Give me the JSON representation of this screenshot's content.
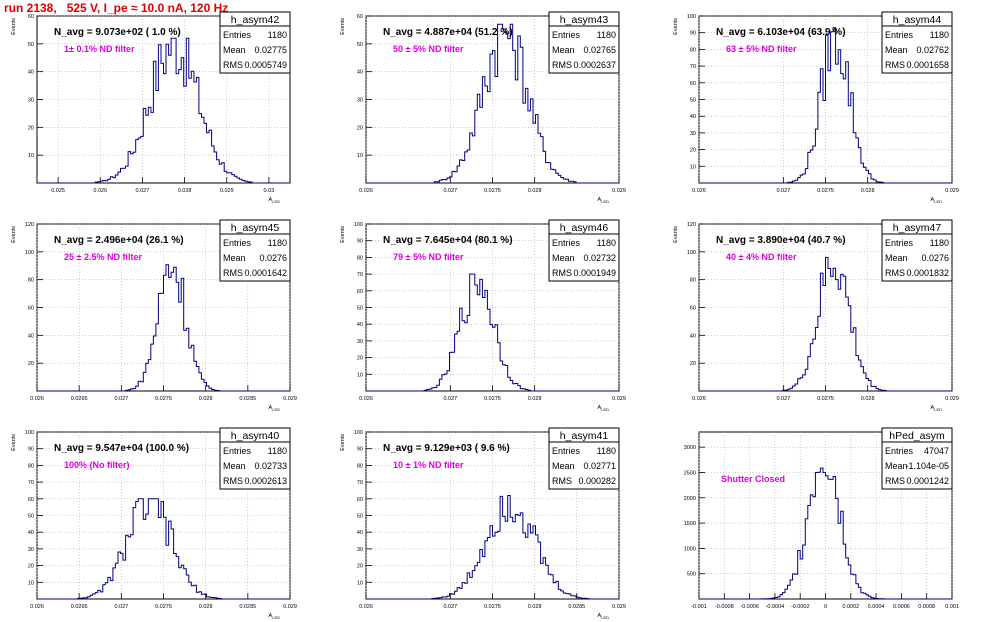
{
  "header": {
    "title": "run 2138,   525 V, I_pe ≈ 10.0 nA, 120 Hz"
  },
  "colors": {
    "histogram": "#000080",
    "title": "#e00000",
    "annotation": "#dd00dd",
    "grid": "#aaaaaa"
  },
  "chart_data": [
    {
      "type": "histogram",
      "name": "h_asym42",
      "nlabel": "N_avg = 9.073e+02 ( 1.0 %)",
      "annotation": "1± 0.1% ND filter",
      "stats": {
        "Entries": "1180",
        "Mean": "0.02775",
        "RMS": "0.0005749"
      },
      "ylabel": "Events",
      "xlabel": "A_LED",
      "xlim": [
        0.0245,
        0.0305
      ],
      "ylim": [
        0,
        60
      ],
      "xticks": [
        "0.025",
        "0.026",
        "0.027",
        "0.028",
        "0.029",
        "0.03"
      ],
      "yticks": [
        "10",
        "20",
        "30",
        "40",
        "50",
        "60"
      ],
      "mean": 0.02775,
      "rms": 0.0005749,
      "peak": 52
    },
    {
      "type": "histogram",
      "name": "h_asym43",
      "nlabel": "N_avg = 4.887e+04 (51.2 %)",
      "annotation": "50 ± 5% ND filter",
      "stats": {
        "Entries": "1180",
        "Mean": "0.02765",
        "RMS": "0.0002637"
      },
      "ylabel": "Events",
      "xlabel": "A_LED",
      "xlim": [
        0.026,
        0.029
      ],
      "ylim": [
        0,
        60
      ],
      "xticks": [
        "0.026",
        "0.027",
        "0.0275",
        "0.028",
        "0.029"
      ],
      "yticks": [
        "10",
        "20",
        "30",
        "40",
        "50",
        "60"
      ],
      "mean": 0.02765,
      "rms": 0.0002637,
      "peak": 57
    },
    {
      "type": "histogram",
      "name": "h_asym44",
      "nlabel": "N_avg = 6.103e+04 (63.9 %)",
      "annotation": "63 ± 5% ND filter",
      "stats": {
        "Entries": "1180",
        "Mean": "0.02762",
        "RMS": "0.0001658"
      },
      "ylabel": "Events",
      "xlabel": "A_LED",
      "xlim": [
        0.026,
        0.029
      ],
      "ylim": [
        0,
        100
      ],
      "xticks": [
        "0.026",
        "0.027",
        "0.0275",
        "0.028",
        "0.029"
      ],
      "yticks": [
        "10",
        "20",
        "30",
        "40",
        "50",
        "60",
        "70",
        "80",
        "90",
        "100"
      ],
      "mean": 0.02762,
      "rms": 0.0001658,
      "peak": 93
    },
    {
      "type": "histogram",
      "name": "h_asym45",
      "nlabel": "N_avg = 2.496e+04 (26.1 %)",
      "annotation": "25 ± 2.5% ND filter",
      "stats": {
        "Entries": "1180",
        "Mean": "0.0276",
        "RMS": "0.0001642"
      },
      "ylabel": "Events",
      "xlabel": "A_LED",
      "xlim": [
        0.026,
        0.029
      ],
      "ylim": [
        0,
        120
      ],
      "xticks": [
        "0.026",
        "0.0265",
        "0.027",
        "0.0275",
        "0.028",
        "0.0285",
        "0.029"
      ],
      "yticks": [
        "20",
        "40",
        "60",
        "80",
        "100",
        "120"
      ],
      "mean": 0.0276,
      "rms": 0.0001642,
      "peak": 94
    },
    {
      "type": "histogram",
      "name": "h_asym46",
      "nlabel": "N_avg = 7.645e+04 (80.1 %)",
      "annotation": "79 ± 5% ND filter",
      "stats": {
        "Entries": "1180",
        "Mean": "0.02732",
        "RMS": "0.0001949"
      },
      "ylabel": "Events",
      "xlabel": "A_LED",
      "xlim": [
        0.026,
        0.029
      ],
      "ylim": [
        0,
        100
      ],
      "xticks": [
        "0.026",
        "0.027",
        "0.0275",
        "0.028",
        "0.029"
      ],
      "yticks": [
        "10",
        "20",
        "30",
        "40",
        "50",
        "60",
        "70",
        "80",
        "90",
        "100"
      ],
      "mean": 0.02732,
      "rms": 0.0001949,
      "peak": 70
    },
    {
      "type": "histogram",
      "name": "h_asym47",
      "nlabel": "N_avg = 3.890e+04 (40.7 %)",
      "annotation": "40 ± 4% ND filter",
      "stats": {
        "Entries": "1180",
        "Mean": "0.0276",
        "RMS": "0.0001832"
      },
      "ylabel": "Events",
      "xlabel": "A_LED",
      "xlim": [
        0.026,
        0.029
      ],
      "ylim": [
        0,
        120
      ],
      "xticks": [
        "0.026",
        "0.027",
        "0.0275",
        "0.028",
        "0.029"
      ],
      "yticks": [
        "20",
        "40",
        "60",
        "80",
        "100",
        "120"
      ],
      "mean": 0.0276,
      "rms": 0.0001832,
      "peak": 96
    },
    {
      "type": "histogram",
      "name": "h_asym40",
      "nlabel": "N_avg = 9.547e+04 (100.0 %)",
      "annotation": "100% (No filter)",
      "stats": {
        "Entries": "1180",
        "Mean": "0.02733",
        "RMS": "0.0002613"
      },
      "ylabel": "Events",
      "xlabel": "A_LED",
      "xlim": [
        0.026,
        0.029
      ],
      "ylim": [
        0,
        100
      ],
      "xticks": [
        "0.026",
        "0.0265",
        "0.027",
        "0.0275",
        "0.028",
        "0.0285",
        "0.029"
      ],
      "yticks": [
        "10",
        "20",
        "30",
        "40",
        "50",
        "60",
        "70",
        "80",
        "90",
        "100"
      ],
      "mean": 0.02733,
      "rms": 0.0002613,
      "peak": 60
    },
    {
      "type": "histogram",
      "name": "h_asym41",
      "nlabel": "N_avg = 9.129e+03 ( 9.6 %)",
      "annotation": "10 ± 1% ND filter",
      "stats": {
        "Entries": "1180",
        "Mean": "0.02771",
        "RMS": "0.000282"
      },
      "ylabel": "Events",
      "xlabel": "A_LED",
      "xlim": [
        0.026,
        0.029
      ],
      "ylim": [
        0,
        100
      ],
      "xticks": [
        "0.026",
        "0.027",
        "0.0275",
        "0.028",
        "0.0285",
        "0.029"
      ],
      "yticks": [
        "10",
        "20",
        "30",
        "40",
        "50",
        "60",
        "70",
        "80",
        "90",
        "100"
      ],
      "mean": 0.02771,
      "rms": 0.000282,
      "peak": 62
    },
    {
      "type": "histogram",
      "name": "hPed_asym",
      "nlabel": "",
      "annotation": "Shutter Closed",
      "stats": {
        "Entries": "47047",
        "Mean": "-1.104e-05",
        "RMS": "0.0001242"
      },
      "ylabel": "",
      "xlabel": "",
      "xlim": [
        -0.001,
        0.001
      ],
      "ylim": [
        0,
        3300
      ],
      "xticks": [
        "-0.001",
        "-0.0008",
        "-0.0006",
        "-0.0004",
        "-0.0002",
        "0",
        "0.0002",
        "0.0004",
        "0.0006",
        "0.0008",
        "0.001"
      ],
      "yticks": [
        "500",
        "1000",
        "1500",
        "2000",
        "2500",
        "3000"
      ],
      "mean": -1.104e-05,
      "rms": 0.0001242,
      "peak": 3080
    }
  ]
}
